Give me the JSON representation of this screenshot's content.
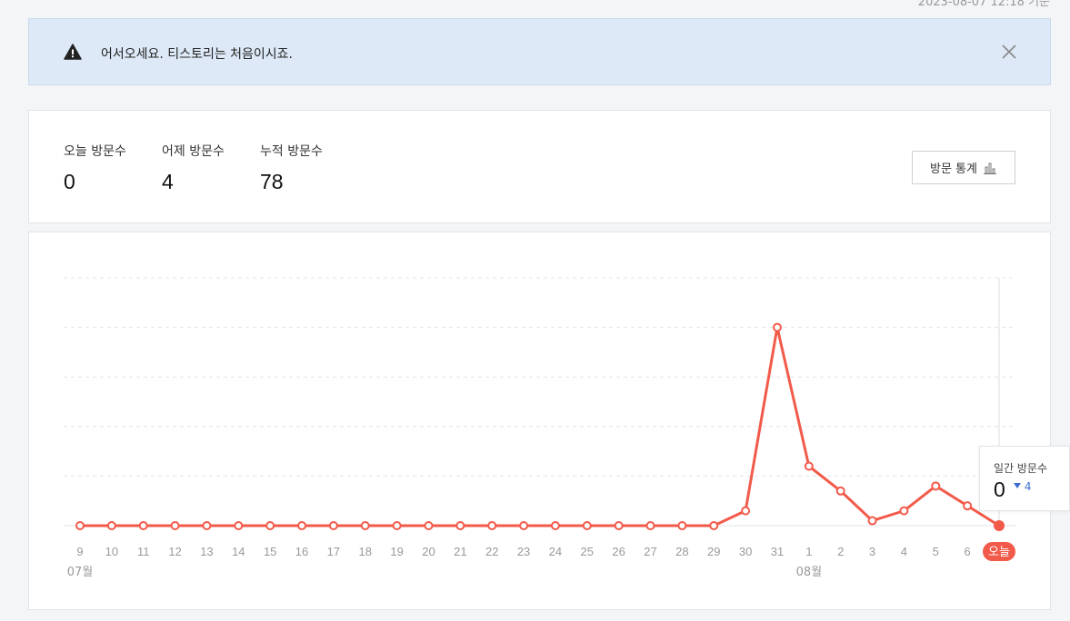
{
  "header": {
    "timestamp": "2023-08-07 12:18 기준"
  },
  "notice": {
    "icon": "warning-icon",
    "message": "어서오세요. 티스토리는 처음이시죠.",
    "close_icon": "close-icon"
  },
  "stats": {
    "today": {
      "label": "오늘 방문수",
      "value": "0"
    },
    "yesterday": {
      "label": "어제 방문수",
      "value": "4"
    },
    "total": {
      "label": "누적 방문수",
      "value": "78"
    },
    "button_label": "방문 통계",
    "button_icon": "bar-chart-icon"
  },
  "tooltip": {
    "label": "일간 방문수",
    "value": "0",
    "diff": "4",
    "diff_direction": "down"
  },
  "chart_data": {
    "type": "line",
    "categories": [
      "9",
      "10",
      "11",
      "12",
      "13",
      "14",
      "15",
      "16",
      "17",
      "18",
      "19",
      "20",
      "21",
      "22",
      "23",
      "24",
      "25",
      "26",
      "27",
      "28",
      "29",
      "30",
      "31",
      "1",
      "2",
      "3",
      "4",
      "5",
      "6",
      "오늘"
    ],
    "month_labels": [
      {
        "label": "07월",
        "category_index": 0
      },
      {
        "label": "08월",
        "category_index": 23
      }
    ],
    "series": [
      {
        "values": [
          0,
          0,
          0,
          0,
          0,
          0,
          0,
          0,
          0,
          0,
          0,
          0,
          0,
          0,
          0,
          0,
          0,
          0,
          0,
          0,
          0,
          3,
          40,
          12,
          7,
          1,
          3,
          8,
          4,
          0
        ]
      }
    ],
    "ylim": [
      0,
      50
    ],
    "grid": true,
    "grid_lines": 5,
    "highlight_index": 29,
    "line_color": "#f25a4a",
    "grid_color": "#e3e4e8",
    "label_color": "#999999"
  }
}
